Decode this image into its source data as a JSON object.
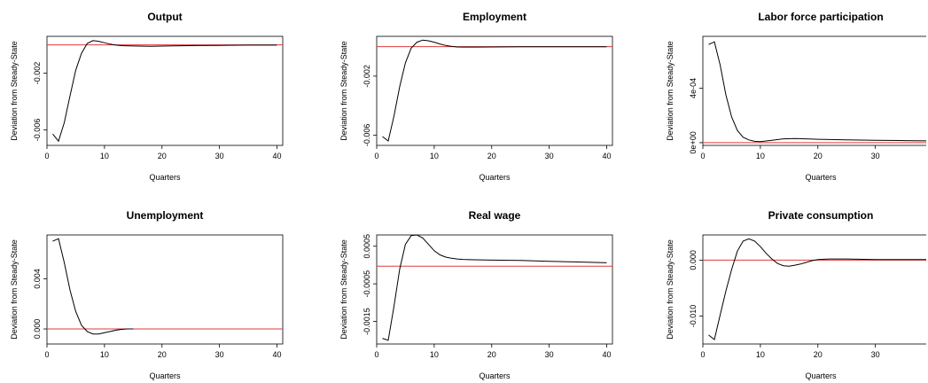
{
  "chart_data": [
    {
      "type": "line",
      "title": "Output",
      "xlabel": "Quarters",
      "ylabel": "Deviation from Steady-State",
      "xlim": [
        0,
        41
      ],
      "ylim": [
        -0.0071,
        0.0006
      ],
      "xticks": [
        0,
        10,
        20,
        30,
        40
      ],
      "yticks": [
        -0.002,
        -0.006
      ],
      "ytick_labels": [
        "-0.002",
        "-0.006"
      ],
      "x": [
        1,
        2,
        3,
        4,
        5,
        6,
        7,
        8,
        9,
        10,
        11,
        12,
        13,
        15,
        18,
        22,
        26,
        30,
        35,
        40
      ],
      "values": [
        -0.0063,
        -0.0068,
        -0.0055,
        -0.0036,
        -0.0018,
        -0.0006,
        0.0001,
        0.0003,
        0.00025,
        0.00015,
        5e-05,
        -2e-05,
        -6e-05,
        -8e-05,
        -0.0001,
        -7e-05,
        -5e-05,
        -4e-05,
        -2e-05,
        -2e-05
      ],
      "reference_line": 0,
      "line_color": "#000000",
      "reference_color": "#e03a3a"
    },
    {
      "type": "line",
      "title": "Employment",
      "xlabel": "Quarters",
      "ylabel": "Deviation from Steady-State",
      "xlim": [
        0,
        41
      ],
      "ylim": [
        -0.0067,
        0.0007
      ],
      "xticks": [
        0,
        10,
        20,
        30,
        40
      ],
      "yticks": [
        -0.002,
        -0.006
      ],
      "ytick_labels": [
        "-0.002",
        "-0.006"
      ],
      "x": [
        1,
        2,
        3,
        4,
        5,
        6,
        7,
        8,
        9,
        10,
        11,
        12,
        13,
        14,
        15,
        17,
        20,
        25,
        30,
        35,
        40
      ],
      "values": [
        -0.0061,
        -0.0064,
        -0.0047,
        -0.0027,
        -0.0011,
        -0.0001,
        0.0003,
        0.00045,
        0.0004,
        0.0003,
        0.00018,
        8e-05,
        2e-05,
        -2e-05,
        -3e-05,
        -3e-05,
        -2e-05,
        -1e-05,
        -1e-05,
        -1e-05,
        -1e-05
      ],
      "reference_line": 0,
      "line_color": "#000000",
      "reference_color": "#e03a3a"
    },
    {
      "type": "line",
      "title": "Labor force participation",
      "xlabel": "Quarters",
      "ylabel": "Deviation from Steady-State",
      "xlim": [
        0,
        41
      ],
      "ylim": [
        -2e-05,
        0.00078
      ],
      "xticks": [
        0,
        10,
        20,
        30,
        40
      ],
      "yticks": [
        0,
        0.0004
      ],
      "ytick_labels": [
        "0e+00",
        "4e-04"
      ],
      "x": [
        1,
        2,
        3,
        4,
        5,
        6,
        7,
        8,
        9,
        10,
        12,
        14,
        16,
        18,
        20,
        25,
        30,
        35,
        40
      ],
      "values": [
        0.00072,
        0.00074,
        0.00057,
        0.00035,
        0.00019,
        9e-05,
        4e-05,
        2e-05,
        1e-05,
        8e-06,
        1.8e-05,
        2.8e-05,
        3e-05,
        2.8e-05,
        2.5e-05,
        2.1e-05,
        1.8e-05,
        1.5e-05,
        1.3e-05
      ],
      "reference_line": 0,
      "line_color": "#000000",
      "reference_color": "#e03a3a"
    },
    {
      "type": "line",
      "title": "Unemployment",
      "xlabel": "Quarters",
      "ylabel": "Deviation from Steady-State",
      "xlim": [
        0,
        41
      ],
      "ylim": [
        -0.0012,
        0.0075
      ],
      "xticks": [
        0,
        10,
        20,
        30,
        40
      ],
      "yticks": [
        0,
        0.004
      ],
      "ytick_labels": [
        "0.000",
        "0.004"
      ],
      "x": [
        1,
        2,
        3,
        4,
        5,
        6,
        7,
        8,
        9,
        10,
        11,
        12,
        13,
        14,
        15
      ],
      "values": [
        0.007,
        0.0072,
        0.0053,
        0.0031,
        0.0014,
        0.0003,
        -0.0002,
        -0.0004,
        -0.0004,
        -0.0003,
        -0.0002,
        -0.0001,
        -3e-05,
        0,
        0
      ],
      "reference_line": 0,
      "line_color": "#000000",
      "reference_color": "#e03a3a"
    },
    {
      "type": "line",
      "title": "Real wage",
      "xlabel": "Quarters",
      "ylabel": "Deviation from Steady-State",
      "xlim": [
        0,
        41
      ],
      "ylim": [
        -0.0021,
        0.0008
      ],
      "xticks": [
        0,
        10,
        20,
        30,
        40
      ],
      "yticks": [
        0.0005,
        -0.0005,
        -0.0015
      ],
      "ytick_labels": [
        "0.0005",
        "-0.0005",
        "-0.0015"
      ],
      "x": [
        1,
        2,
        3,
        4,
        5,
        6,
        7,
        8,
        9,
        10,
        11,
        12,
        13,
        14,
        15,
        17,
        20,
        25,
        30,
        35,
        40
      ],
      "values": [
        -0.00195,
        -0.002,
        -0.0011,
        -0.0001,
        0.00055,
        0.00078,
        0.0008,
        0.00072,
        0.00055,
        0.00038,
        0.00027,
        0.00021,
        0.00018,
        0.00016,
        0.00015,
        0.00014,
        0.00013,
        0.00012,
        0.0001,
        8e-05,
        6e-05
      ],
      "reference_line": -3e-05,
      "line_color": "#000000",
      "reference_color": "#e03a3a"
    },
    {
      "type": "line",
      "title": "Private consumption",
      "xlabel": "Quarters",
      "ylabel": "Deviation from Steady-State",
      "xlim": [
        0,
        41
      ],
      "ylim": [
        -0.015,
        0.0045
      ],
      "xticks": [
        0,
        10,
        20,
        30,
        40
      ],
      "yticks": [
        0,
        -0.01
      ],
      "ytick_labels": [
        "0.000",
        "-0.010"
      ],
      "x": [
        1,
        2,
        3,
        4,
        5,
        6,
        7,
        8,
        9,
        10,
        11,
        12,
        13,
        14,
        15,
        16,
        17,
        18,
        19,
        20,
        22,
        25,
        30,
        35,
        41
      ],
      "values": [
        -0.0134,
        -0.0142,
        -0.0098,
        -0.0055,
        -0.0017,
        0.0016,
        0.0034,
        0.0038,
        0.0034,
        0.0024,
        0.0012,
        0.0002,
        -0.0006,
        -0.001,
        -0.0011,
        -0.0009,
        -0.0007,
        -0.0004,
        -0.0001,
        0.0001,
        0.0002,
        0.0002,
        0.0001,
        0.0001,
        0.0001
      ],
      "reference_line": 0,
      "line_color": "#000000",
      "reference_color": "#e03a3a"
    }
  ]
}
